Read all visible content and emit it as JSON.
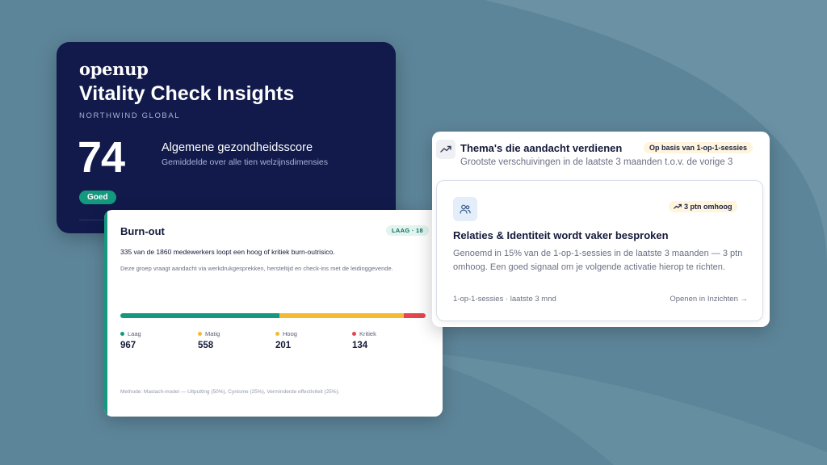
{
  "brand": {
    "logo": "openup"
  },
  "overview": {
    "title": "Vitality Check Insights",
    "company": "NORTHWIND GLOBAL",
    "score": "74",
    "score_title": "Algemene gezondheidsscore",
    "score_subtitle": "Gemiddelde over alle tien welzijnsdimensies",
    "status_badge": "Goed"
  },
  "burnout": {
    "title": "Burn-out",
    "badge": "LAAG · 18",
    "summary": "335 van de 1860 medewerkers loopt een hoog of kritiek burn-outrisico.",
    "description": "Deze groep vraagt aandacht via werkdrukgesprekken, hersteltijd en check-ins met de leidinggevende.",
    "segments": [
      {
        "label": "Laag",
        "value": 967,
        "color": "#14997e"
      },
      {
        "label": "Matig",
        "value": 558,
        "color": "#f4bb30"
      },
      {
        "label": "Hoog",
        "value": 201,
        "color": "#f4bb30"
      },
      {
        "label": "Kritiek",
        "value": 134,
        "color": "#e5454f"
      }
    ],
    "method": "Methode: Maslach-model — Uitputting (50%), Cynisme (25%), Verminderde effectiviteit (25%)."
  },
  "themes": {
    "title": "Thema's die aandacht verdienen",
    "badge": "Op basis van 1-op-1-sessies",
    "subtitle": "Grootste verschuivingen in de laatste 3 maanden t.o.v. de vorige 3",
    "item": {
      "badge": "3 ptn omhoog",
      "title": "Relaties & Identiteit wordt vaker besproken",
      "body": "Genoemd in 15% van de 1-op-1-sessies in de laatste 3 maanden — 3 ptn omhoog. Een goed signaal om je volgende activatie hierop te richten.",
      "footer": "1-op-1-sessies · laatste 3 mnd",
      "link": "Openen in Inzichten →"
    }
  }
}
